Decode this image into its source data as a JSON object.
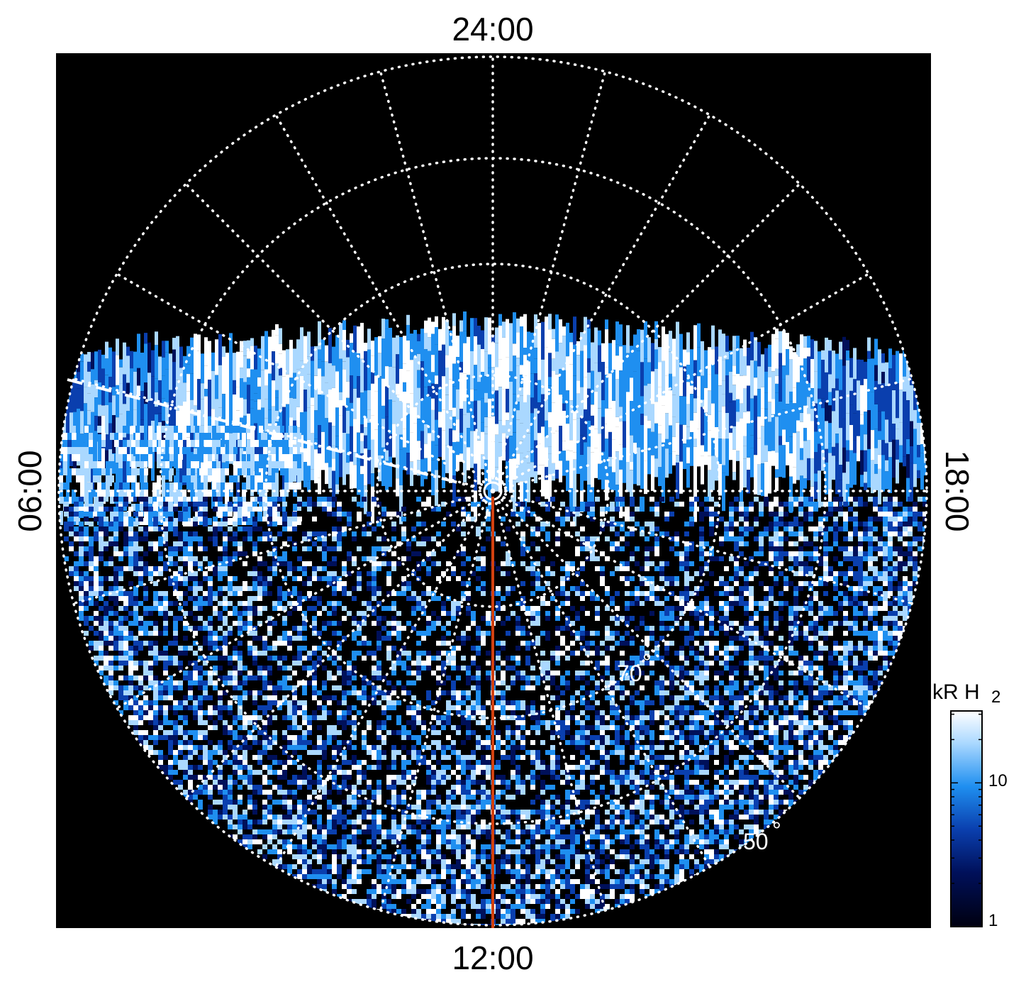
{
  "labels": {
    "top": "24:00",
    "bottom": "12:00",
    "left": "06:00",
    "right": "18:00"
  },
  "latitude_labels": [
    "70",
    "50"
  ],
  "colorbar": {
    "unit_prefix": "kR H",
    "unit_subscript": "2",
    "ticks": [
      "10",
      "1"
    ],
    "scale": "log"
  },
  "colors": {
    "background": "#000000",
    "colormap": [
      "#000010",
      "#00105a",
      "#0a3fae",
      "#1f8ff0",
      "#aad8ff",
      "#ffffff"
    ],
    "grid": "#ffffff",
    "meridian_line": "#d2410f"
  }
}
